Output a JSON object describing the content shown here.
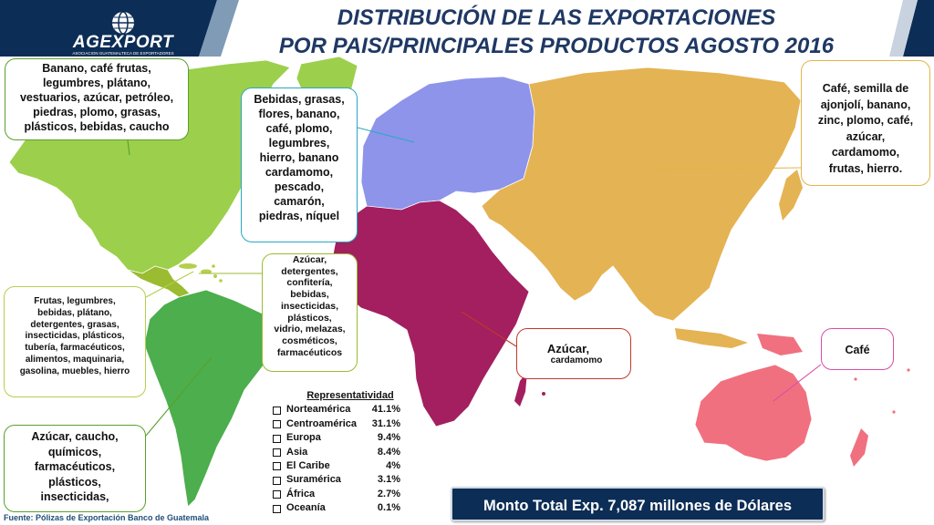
{
  "title": {
    "line1": "DISTRIBUCIÓN  DE LAS EXPORTACIONES",
    "line2": "POR  PAIS/PRINCIPALES PRODUCTOS AGOSTO  2016"
  },
  "logo": {
    "name": "AGEXPORT",
    "subtitle": "ASOCIACION GUATEMALTECA DE EXPORTADORES"
  },
  "regions": {
    "norteamerica": {
      "lines": [
        "Banano, café frutas,",
        "legumbres, plátano,",
        "vestuarios, azúcar, petróleo,",
        "piedras, plomo, grasas,",
        "plásticos, bebidas, caucho"
      ],
      "color": "#9ccf4b"
    },
    "europa": {
      "lines": [
        "Bebidas, grasas,",
        "flores, banano,",
        "café, plomo,",
        "legumbres,",
        "hierro, banano",
        "cardamomo,",
        "pescado,",
        "camarón,",
        "piedras, níquel"
      ],
      "color": "#8e94ea"
    },
    "asia": {
      "lines": [
        "Café, semilla de",
        "ajonjolí, banano,",
        "zinc, plomo, café,",
        "azúcar,",
        "cardamomo,",
        "frutas, hierro."
      ],
      "color": "#e4b353"
    },
    "centroamerica": {
      "lines": [
        "Azúcar,",
        "detergentes,",
        "confitería,",
        "bebidas,",
        "insecticidas,",
        "plásticos,",
        "vidrio, melazas,",
        "cosméticos,",
        "farmacéuticos"
      ],
      "color": "#9bbb30"
    },
    "caribe": {
      "lines": [
        "Frutas, legumbres,",
        "bebidas, plátano,",
        "detergentes, grasas,",
        "insecticidas, plásticos,",
        "tubería, farmacéuticos,",
        "alimentos, maquinaria,",
        "gasolina, muebles, hierro"
      ],
      "color": "#b4cf4c"
    },
    "suramerica": {
      "lines": [
        "Azúcar, caucho,",
        "químicos,",
        "farmacéuticos,",
        "plásticos,",
        "insecticidas,"
      ],
      "color": "#4cae4c"
    },
    "africa": {
      "line1": "Azúcar,",
      "line2": "cardamomo",
      "color": "#a31f5f"
    },
    "oceania": {
      "text": "Café",
      "color": "#f07080"
    }
  },
  "representatividad": {
    "title": "Representatividad",
    "items": [
      {
        "name": "Norteamérica",
        "value": "41.1%"
      },
      {
        "name": "Centroamérica",
        "value": "31.1%"
      },
      {
        "name": "Europa",
        "value": "9.4%"
      },
      {
        "name": "Asia",
        "value": "8.4%"
      },
      {
        "name": "El Caribe",
        "value": "4%"
      },
      {
        "name": "Suramérica",
        "value": "3.1%"
      },
      {
        "name": "África",
        "value": "2.7%"
      },
      {
        "name": "Oceanía",
        "value": "0.1%"
      }
    ]
  },
  "total": "Monto Total Exp.   7,087 millones de Dólares",
  "source": "Fuente: Pólizas de Exportación Banco de Guatemala",
  "colors": {
    "navy": "#0c2d55",
    "title": "#1f3864",
    "continent_border": "#ffffff"
  }
}
